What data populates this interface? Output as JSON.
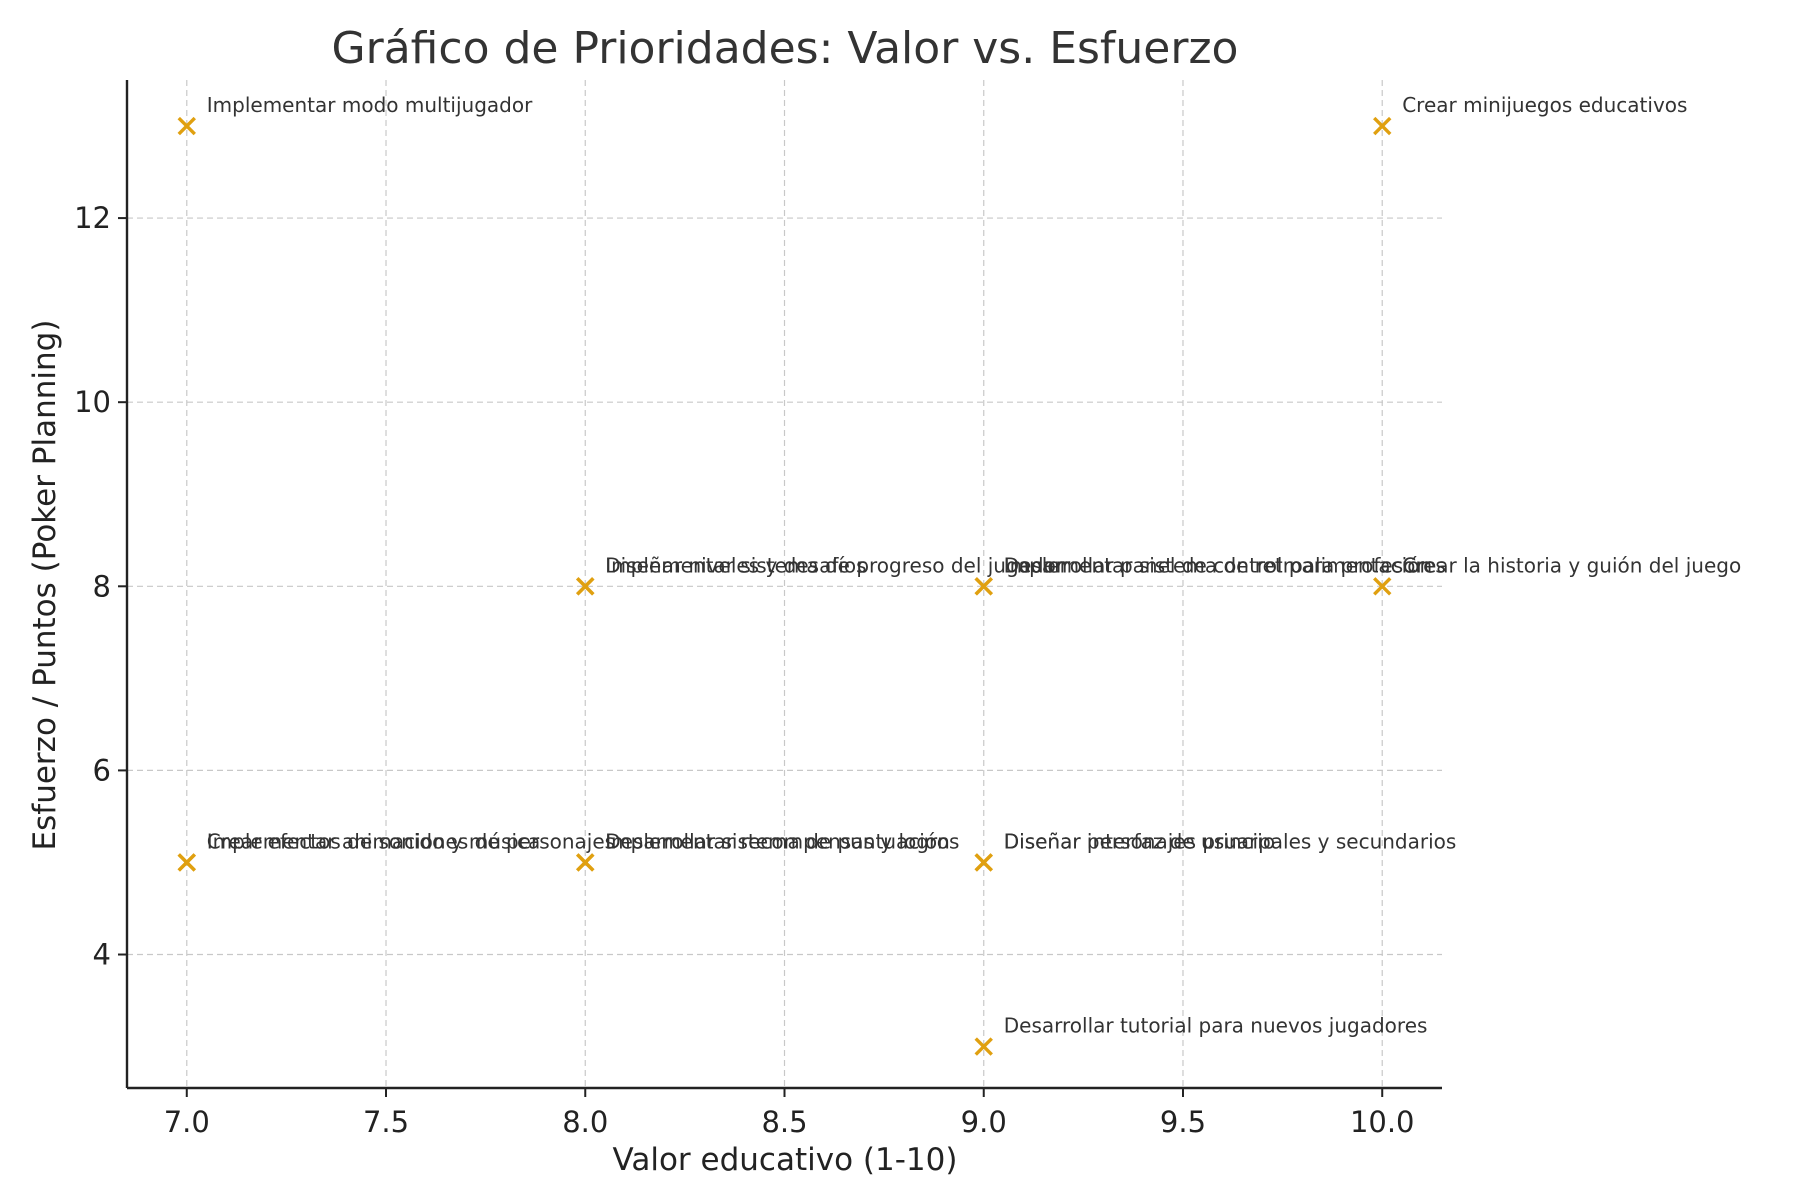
{
  "chart_data": {
    "type": "scatter",
    "title": "Gráfico de Prioridades: Valor vs. Esfuerzo",
    "xlabel": "Valor educativo (1-10)",
    "ylabel": "Esfuerzo / Puntos (Poker Planning)",
    "xlim": [
      6.85,
      10.15
    ],
    "ylim": [
      2.55,
      13.5
    ],
    "xticks": [
      7.0,
      7.5,
      8.0,
      8.5,
      9.0,
      9.5,
      10.0
    ],
    "xtick_labels": [
      "7.0",
      "7.5",
      "8.0",
      "8.5",
      "9.0",
      "9.5",
      "10.0"
    ],
    "yticks": [
      4,
      6,
      8,
      10,
      12
    ],
    "ytick_labels": [
      "4",
      "6",
      "8",
      "10",
      "12"
    ],
    "grid": true,
    "marker": "x",
    "marker_color": "#E0A010",
    "points": [
      {
        "x": 7,
        "y": 13,
        "label": "Implementar modo multijugador"
      },
      {
        "x": 10,
        "y": 13,
        "label": "Crear minijuegos educativos"
      },
      {
        "x": 8,
        "y": 8,
        "label": "Diseñar niveles y desafíos"
      },
      {
        "x": 8,
        "y": 8,
        "label": "Implementar sistema de progreso del jugador"
      },
      {
        "x": 9,
        "y": 8,
        "label": "Desarrollar panel de control para profesores"
      },
      {
        "x": 9,
        "y": 8,
        "label": "Implementar sistema de retroalimentación"
      },
      {
        "x": 10,
        "y": 8,
        "label": "Crear la historia y guión del juego"
      },
      {
        "x": 7,
        "y": 5,
        "label": "Crear efectos de sonido y música"
      },
      {
        "x": 7,
        "y": 5,
        "label": "Implementar animaciones de personajes"
      },
      {
        "x": 8,
        "y": 5,
        "label": "Desarrollar sistema de puntuación"
      },
      {
        "x": 8,
        "y": 5,
        "label": "Implementar recompensas y logros"
      },
      {
        "x": 9,
        "y": 5,
        "label": "Diseñar personajes principales y secundarios"
      },
      {
        "x": 9,
        "y": 5,
        "label": "Diseñar interfaz de usuario"
      },
      {
        "x": 9,
        "y": 3,
        "label": "Desarrollar tutorial para nuevos jugadores"
      }
    ]
  }
}
